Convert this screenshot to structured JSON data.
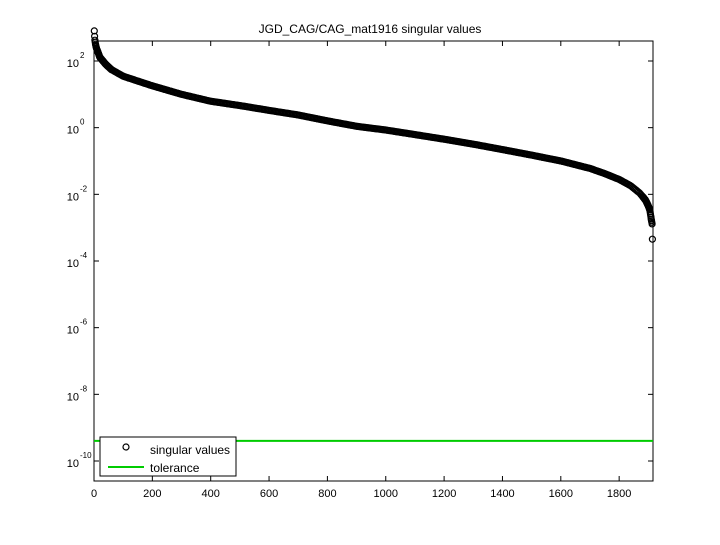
{
  "chart_data": {
    "type": "scatter",
    "title": "JGD_CAG/CAG_mat1916 singular values",
    "xlabel": "",
    "ylabel": "",
    "xlim": [
      0,
      1916
    ],
    "ylim_log10": [
      -10.6,
      2.6
    ],
    "y_scale": "log",
    "grid": false,
    "legend_position": "bottom-left",
    "x_ticks": [
      0,
      200,
      400,
      600,
      800,
      1000,
      1200,
      1400,
      1600,
      1800
    ],
    "x_tick_labels": [
      "0",
      "200",
      "400",
      "600",
      "800",
      "1000",
      "1200",
      "1400",
      "1600",
      "1800"
    ],
    "y_ticks_log10": [
      2,
      0,
      -2,
      -4,
      -6,
      -8,
      -10
    ],
    "y_tick_bases": [
      "10",
      "10",
      "10",
      "10",
      "10",
      "10",
      "10"
    ],
    "y_tick_exponents": [
      "2",
      "0",
      "-2",
      "-4",
      "-6",
      "-8",
      "-10"
    ],
    "series": [
      {
        "name": "singular values",
        "marker": "circle-open",
        "color": "#000000",
        "curve_points": [
          [
            1,
            800
          ],
          [
            2,
            550
          ],
          [
            3,
            420
          ],
          [
            5,
            320
          ],
          [
            8,
            250
          ],
          [
            12,
            200
          ],
          [
            20,
            130
          ],
          [
            40,
            80
          ],
          [
            60,
            55
          ],
          [
            100,
            35
          ],
          [
            150,
            25
          ],
          [
            200,
            18
          ],
          [
            300,
            10
          ],
          [
            400,
            6.2
          ],
          [
            500,
            4.6
          ],
          [
            600,
            3.3
          ],
          [
            700,
            2.4
          ],
          [
            800,
            1.6
          ],
          [
            900,
            1.1
          ],
          [
            1000,
            0.85
          ],
          [
            1100,
            0.62
          ],
          [
            1200,
            0.45
          ],
          [
            1300,
            0.32
          ],
          [
            1400,
            0.22
          ],
          [
            1500,
            0.15
          ],
          [
            1600,
            0.1
          ],
          [
            1700,
            0.06
          ],
          [
            1750,
            0.042
          ],
          [
            1800,
            0.028
          ],
          [
            1840,
            0.018
          ],
          [
            1870,
            0.011
          ],
          [
            1890,
            0.0068
          ],
          [
            1900,
            0.0045
          ],
          [
            1905,
            0.0034
          ],
          [
            1910,
            0.0018
          ],
          [
            1913,
            0.0013
          ],
          [
            1914,
            0.00045
          ]
        ]
      },
      {
        "name": "tolerance",
        "style": "line",
        "color": "#00cc00",
        "value": 4e-10
      }
    ]
  }
}
